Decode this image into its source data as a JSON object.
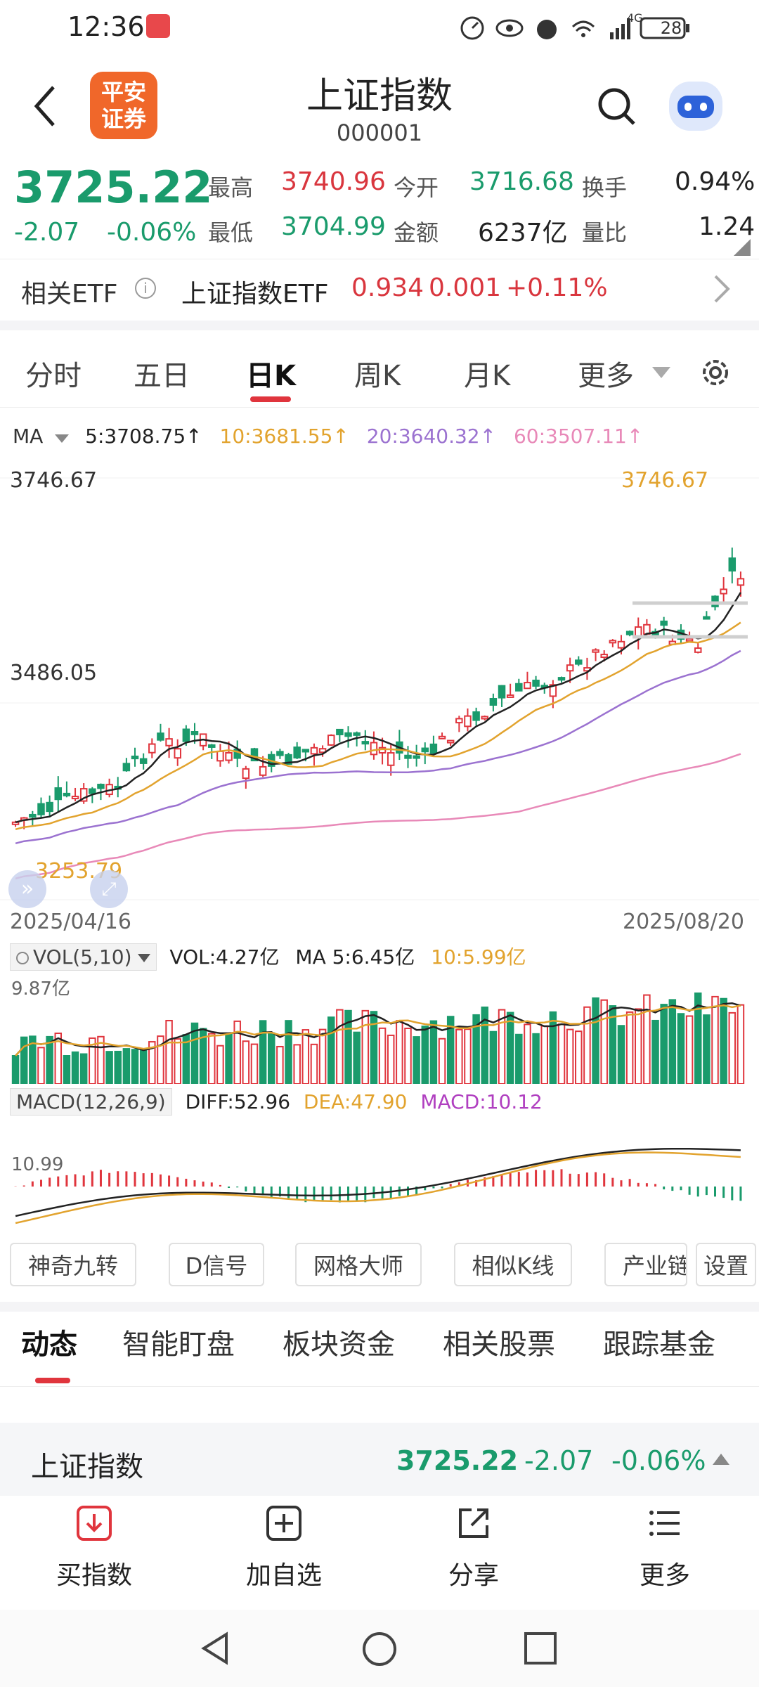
{
  "status_bar": {
    "time": "12:36",
    "battery": "28",
    "network": "4G"
  },
  "header": {
    "title": "上证指数",
    "code": "000001",
    "logo_line1": "平安",
    "logo_line2": "证券"
  },
  "quote": {
    "price": "3725.22",
    "change": "-2.07",
    "change_pct": "-0.06%",
    "high_label": "最高",
    "high": "3740.96",
    "low_label": "最低",
    "low": "3704.99",
    "open_label": "今开",
    "open": "3716.68",
    "amount_label": "金额",
    "amount": "6237亿",
    "turnover_label": "换手",
    "turnover": "0.94%",
    "vol_ratio_label": "量比",
    "vol_ratio": "1.24"
  },
  "etf": {
    "label": "相关ETF",
    "name": "上证指数ETF",
    "price": "0.934",
    "change": "0.001",
    "change_pct": "+0.11%"
  },
  "tabs": {
    "items": [
      "分时",
      "五日",
      "日K",
      "周K",
      "月K",
      "更多"
    ],
    "active": 2
  },
  "ma": {
    "label": "MA",
    "ma5": "5:3708.75↑",
    "ma10": "10:3681.55↑",
    "ma20": "20:3640.32↑",
    "ma60": "60:3507.11↑",
    "color_ma5": "#222222",
    "color_ma10": "#e2a32e",
    "color_ma20": "#9b72d0",
    "color_ma60": "#e889b8"
  },
  "chart_data": {
    "type": "candlestick",
    "y_labels": {
      "top": "3746.67",
      "mid": "3486.05",
      "bottom": "3253.79"
    },
    "max_label": "3746.67",
    "date_start": "2025/04/16",
    "date_end": "2025/08/20",
    "ylim": [
      3200,
      3760
    ]
  },
  "vol": {
    "selector": "VOL(5,10)",
    "vol": "VOL:4.27亿",
    "ma5": "MA 5:6.45亿",
    "ma10": "10:5.99亿",
    "top_label": "9.87亿"
  },
  "macd": {
    "selector": "MACD(12,26,9)",
    "diff": "DIFF:52.96",
    "dea": "DEA:47.90",
    "macd": "MACD:10.12",
    "top_label": "10.99"
  },
  "tools": [
    "神奇九转",
    "D信号",
    "网格大师",
    "相似K线",
    "产业链",
    "设置"
  ],
  "bottom_tabs": {
    "items": [
      "动态",
      "智能盯盘",
      "板块资金",
      "相关股票",
      "跟踪基金"
    ],
    "active": 0
  },
  "mini_quote": {
    "name": "上证指数",
    "price": "3725.22",
    "change": "-2.07",
    "change_pct": "-0.06%"
  },
  "bottom_nav": [
    {
      "label": "买指数",
      "icon": "buy-icon"
    },
    {
      "label": "加自选",
      "icon": "add-watchlist-icon"
    },
    {
      "label": "分享",
      "icon": "share-icon"
    },
    {
      "label": "更多",
      "icon": "more-menu-icon"
    }
  ]
}
